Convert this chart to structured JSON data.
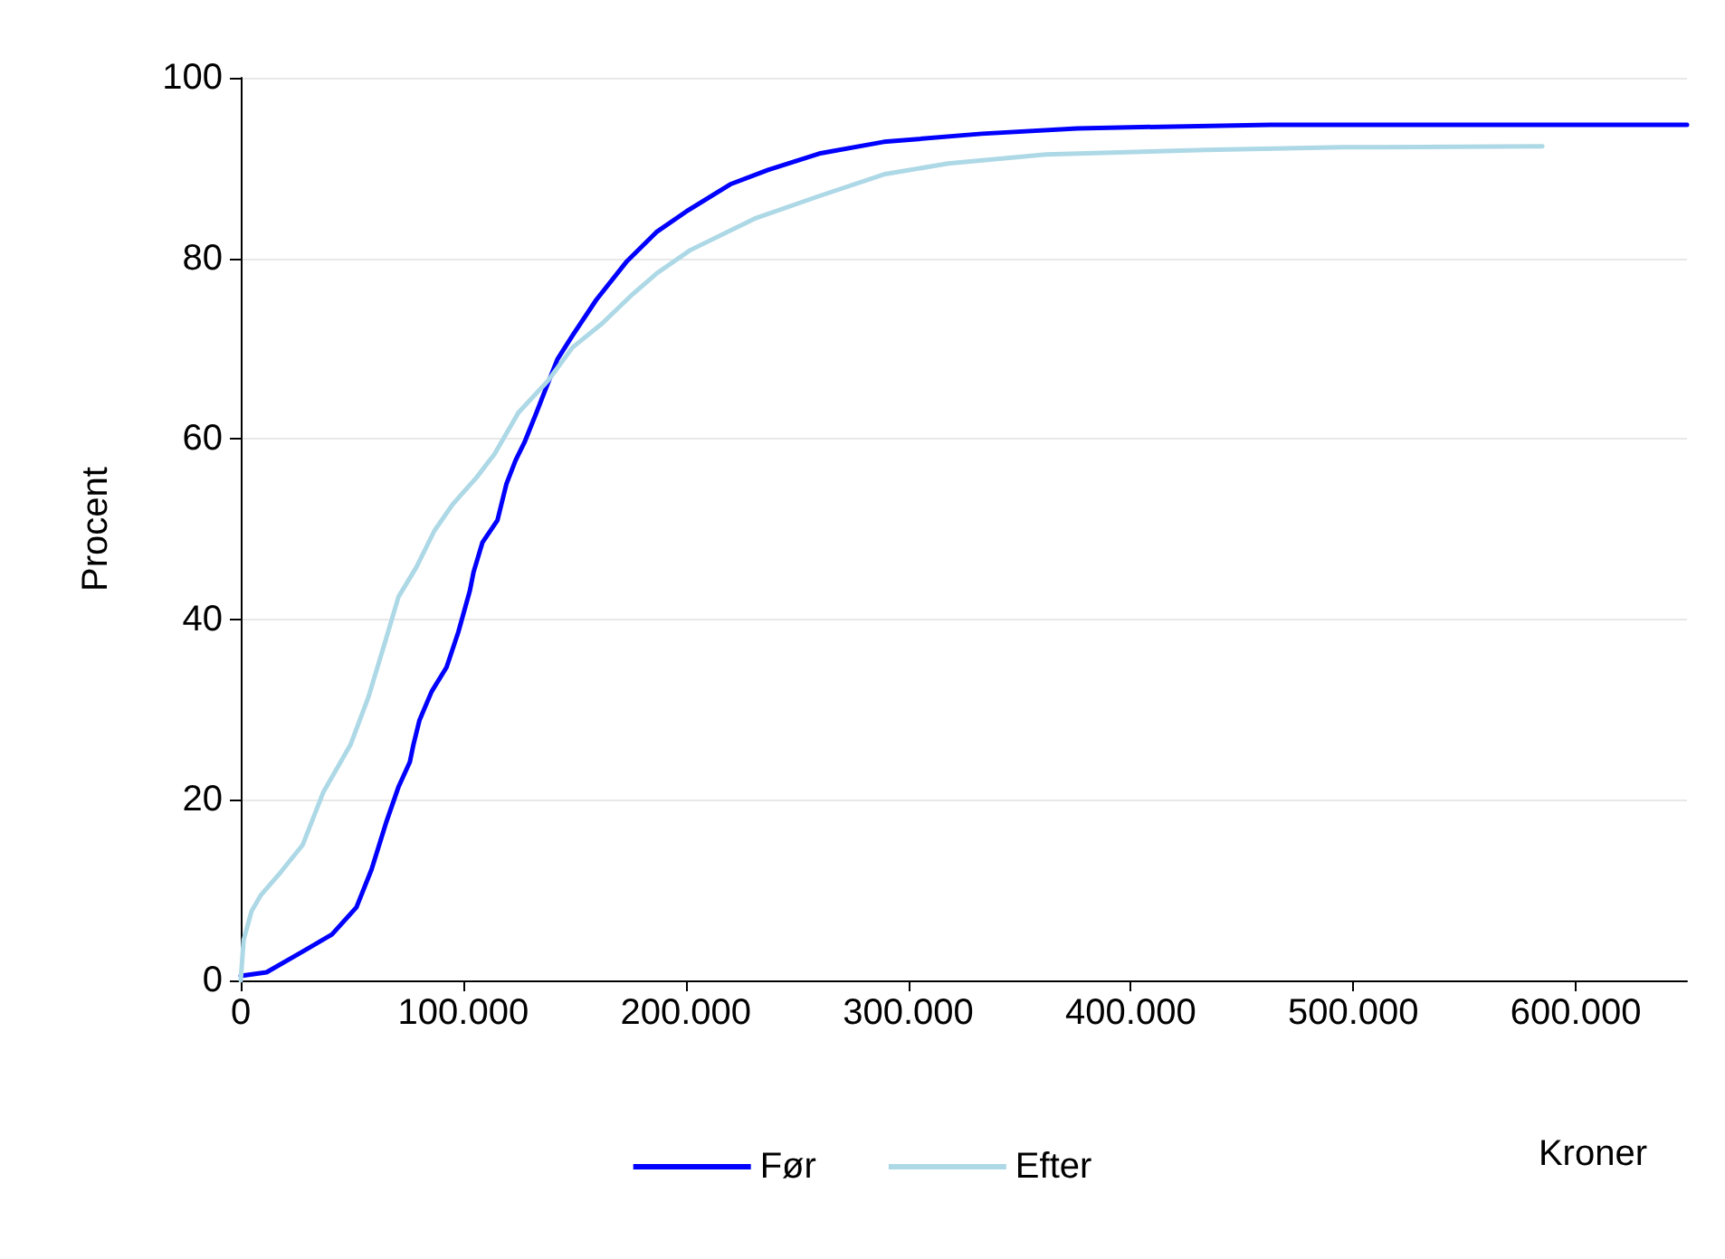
{
  "chart_data": {
    "type": "line",
    "xlabel": "Kroner",
    "ylabel": "Procent",
    "xlim": [
      0,
      650000
    ],
    "ylim": [
      0,
      100
    ],
    "xticks": [
      0,
      {
        "value": 100000,
        "label": "100.000"
      },
      {
        "value": 200000,
        "label": "200.000"
      },
      {
        "value": 300000,
        "label": "300.000"
      },
      {
        "value": 400000,
        "label": "400.000"
      },
      {
        "value": 500000,
        "label": "500.000"
      },
      {
        "value": 600000,
        "label": "600.000"
      }
    ],
    "yticks": [
      0,
      20,
      40,
      60,
      80,
      100
    ],
    "grid": "y",
    "legend": "bottom",
    "marker": "none",
    "line_style": "solid",
    "series": [
      {
        "name": "Før",
        "color": "#0000ff",
        "x": [
          0,
          11600,
          27800,
          41000,
          52000,
          58800,
          65500,
          71000,
          76000,
          77600,
          80300,
          85800,
          92500,
          97800,
          103000,
          104600,
          108600,
          115400,
          119400,
          123500,
          127500,
          132900,
          137000,
          142300,
          149000,
          159800,
          173300,
          186800,
          200300,
          220000,
          237000,
          260000,
          289000,
          333000,
          376000,
          463000,
          650000
        ],
        "values": [
          0.5,
          0.9,
          3.2,
          5.1,
          8.1,
          12.3,
          17.6,
          21.5,
          24.2,
          26.1,
          28.8,
          32,
          34.7,
          38.6,
          43.2,
          45.2,
          48.5,
          51,
          55,
          57.6,
          59.6,
          62.9,
          65.5,
          68.8,
          71.4,
          75.4,
          79.6,
          82.9,
          85.2,
          88.2,
          89.8,
          91.6,
          92.9,
          93.8,
          94.4,
          94.8,
          94.8
        ]
      },
      {
        "name": "Efter",
        "color": "#add8e6",
        "x": [
          0,
          1300,
          4900,
          8900,
          17000,
          27800,
          37200,
          49300,
          57400,
          65500,
          70900,
          79000,
          87000,
          95100,
          105900,
          114000,
          124800,
          138300,
          149000,
          162500,
          176000,
          186800,
          202000,
          231000,
          260000,
          289000,
          318000,
          362000,
          434000,
          495000,
          585000
        ],
        "values": [
          0,
          4.5,
          7.7,
          9.4,
          11.7,
          15,
          20.9,
          26.1,
          31.4,
          38,
          42.5,
          45.8,
          49.8,
          52.7,
          55.7,
          58.3,
          62.9,
          66.5,
          70.1,
          72.8,
          76,
          78.3,
          80.9,
          84.4,
          86.9,
          89.3,
          90.5,
          91.5,
          92,
          92.3,
          92.4
        ]
      }
    ]
  }
}
